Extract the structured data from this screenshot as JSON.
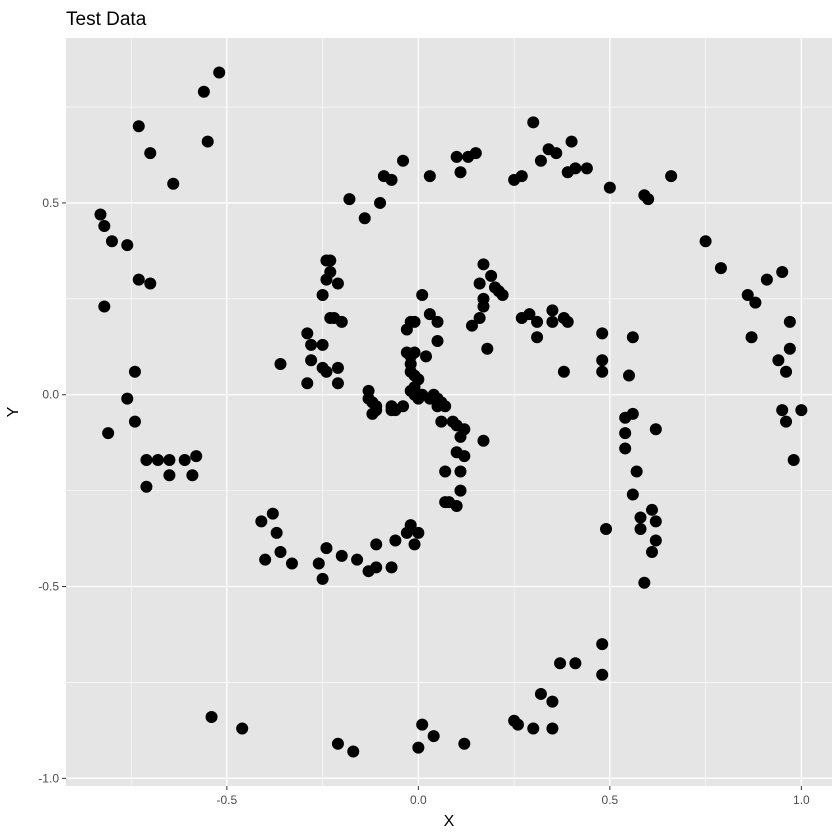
{
  "chart_data": {
    "type": "scatter",
    "title": "Test Data",
    "xlabel": "X",
    "ylabel": "Y",
    "xlim": [
      -0.92,
      1.08
    ],
    "ylim": [
      -1.02,
      0.93
    ],
    "x_ticks": [
      -0.5,
      0.0,
      0.5,
      1.0
    ],
    "x_tick_labels": [
      "-0.5",
      "0.0",
      "0.5",
      "1.0"
    ],
    "y_ticks": [
      -1.0,
      -0.5,
      0.0,
      0.5
    ],
    "y_tick_labels": [
      "-1.0",
      "-0.5",
      "0.0",
      "0.5"
    ],
    "grid": true,
    "legend": "none",
    "colors": {
      "panel": "#e5e5e5",
      "grid": "#ffffff",
      "point": "#000000",
      "background": "#ffffff"
    },
    "points": [
      [
        -0.52,
        0.84
      ],
      [
        -0.56,
        0.79
      ],
      [
        -0.55,
        0.66
      ],
      [
        -0.73,
        0.7
      ],
      [
        -0.7,
        0.63
      ],
      [
        -0.64,
        0.55
      ],
      [
        -0.83,
        0.47
      ],
      [
        -0.82,
        0.44
      ],
      [
        -0.8,
        0.4
      ],
      [
        -0.76,
        0.39
      ],
      [
        -0.73,
        0.3
      ],
      [
        -0.7,
        0.29
      ],
      [
        -0.82,
        0.23
      ],
      [
        -0.74,
        0.06
      ],
      [
        -0.76,
        -0.01
      ],
      [
        -0.74,
        -0.07
      ],
      [
        -0.81,
        -0.1
      ],
      [
        -0.71,
        -0.17
      ],
      [
        -0.68,
        -0.17
      ],
      [
        -0.65,
        -0.17
      ],
      [
        -0.61,
        -0.17
      ],
      [
        -0.58,
        -0.16
      ],
      [
        -0.71,
        -0.24
      ],
      [
        -0.65,
        -0.21
      ],
      [
        -0.59,
        -0.21
      ],
      [
        -0.54,
        -0.84
      ],
      [
        -0.46,
        -0.87
      ],
      [
        -0.41,
        -0.33
      ],
      [
        -0.38,
        -0.31
      ],
      [
        -0.37,
        -0.36
      ],
      [
        -0.36,
        -0.41
      ],
      [
        -0.4,
        -0.43
      ],
      [
        -0.33,
        -0.44
      ],
      [
        -0.26,
        -0.44
      ],
      [
        -0.25,
        -0.48
      ],
      [
        -0.24,
        -0.4
      ],
      [
        -0.2,
        -0.42
      ],
      [
        -0.16,
        -0.43
      ],
      [
        -0.13,
        -0.46
      ],
      [
        -0.11,
        -0.45
      ],
      [
        -0.07,
        -0.45
      ],
      [
        -0.11,
        -0.39
      ],
      [
        -0.06,
        -0.38
      ],
      [
        -0.03,
        -0.36
      ],
      [
        -0.02,
        -0.34
      ],
      [
        0.0,
        -0.36
      ],
      [
        -0.01,
        -0.39
      ],
      [
        -0.21,
        -0.91
      ],
      [
        -0.17,
        -0.93
      ],
      [
        0.01,
        -0.86
      ],
      [
        0.0,
        -0.92
      ],
      [
        0.04,
        -0.89
      ],
      [
        0.12,
        -0.91
      ],
      [
        0.25,
        -0.85
      ],
      [
        0.26,
        -0.86
      ],
      [
        0.3,
        -0.87
      ],
      [
        0.32,
        -0.78
      ],
      [
        0.35,
        -0.8
      ],
      [
        0.35,
        -0.87
      ],
      [
        0.37,
        -0.7
      ],
      [
        0.41,
        -0.7
      ],
      [
        0.48,
        -0.65
      ],
      [
        0.48,
        -0.73
      ],
      [
        -0.18,
        0.51
      ],
      [
        -0.14,
        0.46
      ],
      [
        -0.1,
        0.5
      ],
      [
        -0.09,
        0.57
      ],
      [
        -0.07,
        0.56
      ],
      [
        -0.04,
        0.61
      ],
      [
        0.03,
        0.57
      ],
      [
        0.1,
        0.62
      ],
      [
        0.11,
        0.58
      ],
      [
        0.13,
        0.62
      ],
      [
        0.15,
        0.63
      ],
      [
        0.25,
        0.56
      ],
      [
        0.27,
        0.57
      ],
      [
        0.3,
        0.71
      ],
      [
        0.32,
        0.61
      ],
      [
        0.34,
        0.64
      ],
      [
        0.36,
        0.63
      ],
      [
        0.39,
        0.58
      ],
      [
        0.4,
        0.66
      ],
      [
        0.41,
        0.59
      ],
      [
        0.44,
        0.59
      ],
      [
        0.5,
        0.54
      ],
      [
        0.6,
        0.51
      ],
      [
        0.59,
        0.52
      ],
      [
        0.66,
        0.57
      ],
      [
        0.75,
        0.4
      ],
      [
        0.79,
        0.33
      ],
      [
        0.86,
        0.26
      ],
      [
        0.88,
        0.24
      ],
      [
        0.91,
        0.3
      ],
      [
        0.95,
        0.32
      ],
      [
        0.97,
        0.19
      ],
      [
        0.87,
        0.15
      ],
      [
        0.97,
        0.12
      ],
      [
        0.94,
        0.09
      ],
      [
        0.96,
        0.06
      ],
      [
        0.95,
        -0.04
      ],
      [
        0.96,
        -0.07
      ],
      [
        1.0,
        -0.04
      ],
      [
        0.98,
        -0.17
      ],
      [
        -0.24,
        0.35
      ],
      [
        -0.23,
        0.35
      ],
      [
        -0.23,
        0.32
      ],
      [
        -0.24,
        0.3
      ],
      [
        -0.21,
        0.29
      ],
      [
        -0.25,
        0.26
      ],
      [
        -0.23,
        0.2
      ],
      [
        -0.22,
        0.2
      ],
      [
        -0.2,
        0.19
      ],
      [
        -0.29,
        0.16
      ],
      [
        -0.28,
        0.13
      ],
      [
        -0.25,
        0.13
      ],
      [
        -0.36,
        0.08
      ],
      [
        -0.28,
        0.09
      ],
      [
        -0.24,
        0.06
      ],
      [
        -0.25,
        0.07
      ],
      [
        -0.21,
        0.07
      ],
      [
        -0.29,
        0.03
      ],
      [
        -0.21,
        0.03
      ],
      [
        -0.13,
        0.01
      ],
      [
        -0.13,
        -0.01
      ],
      [
        -0.12,
        -0.02
      ],
      [
        -0.11,
        -0.03
      ],
      [
        -0.12,
        -0.05
      ],
      [
        -0.11,
        -0.04
      ],
      [
        -0.07,
        -0.03
      ],
      [
        -0.07,
        -0.04
      ],
      [
        -0.06,
        -0.04
      ],
      [
        -0.04,
        -0.03
      ],
      [
        -0.03,
        0.17
      ],
      [
        -0.02,
        0.19
      ],
      [
        -0.01,
        0.19
      ],
      [
        0.01,
        0.26
      ],
      [
        0.03,
        0.21
      ],
      [
        0.05,
        0.19
      ],
      [
        -0.03,
        0.11
      ],
      [
        -0.02,
        0.1
      ],
      [
        -0.01,
        0.11
      ],
      [
        0.02,
        0.1
      ],
      [
        0.05,
        0.14
      ],
      [
        -0.02,
        0.08
      ],
      [
        -0.02,
        0.06
      ],
      [
        -0.01,
        0.05
      ],
      [
        0.0,
        0.04
      ],
      [
        -0.01,
        0.02
      ],
      [
        -0.02,
        0.01
      ],
      [
        -0.01,
        0.0
      ],
      [
        0.0,
        -0.01
      ],
      [
        0.01,
        0.0
      ],
      [
        0.04,
        0.0
      ],
      [
        0.03,
        -0.01
      ],
      [
        0.05,
        -0.01
      ],
      [
        0.06,
        -0.02
      ],
      [
        0.05,
        -0.03
      ],
      [
        0.07,
        -0.03
      ],
      [
        0.06,
        -0.07
      ],
      [
        0.09,
        -0.07
      ],
      [
        0.1,
        -0.08
      ],
      [
        0.11,
        -0.11
      ],
      [
        0.12,
        -0.09
      ],
      [
        0.1,
        -0.15
      ],
      [
        0.12,
        -0.16
      ],
      [
        0.17,
        -0.12
      ],
      [
        0.07,
        -0.2
      ],
      [
        0.11,
        -0.2
      ],
      [
        0.11,
        -0.25
      ],
      [
        0.07,
        -0.28
      ],
      [
        0.08,
        -0.28
      ],
      [
        0.1,
        -0.29
      ],
      [
        0.14,
        0.18
      ],
      [
        0.16,
        0.2
      ],
      [
        0.17,
        0.23
      ],
      [
        0.17,
        0.25
      ],
      [
        0.16,
        0.29
      ],
      [
        0.17,
        0.34
      ],
      [
        0.19,
        0.31
      ],
      [
        0.2,
        0.28
      ],
      [
        0.21,
        0.27
      ],
      [
        0.22,
        0.26
      ],
      [
        0.18,
        0.12
      ],
      [
        0.27,
        0.2
      ],
      [
        0.29,
        0.21
      ],
      [
        0.31,
        0.19
      ],
      [
        0.31,
        0.15
      ],
      [
        0.35,
        0.22
      ],
      [
        0.35,
        0.19
      ],
      [
        0.38,
        0.2
      ],
      [
        0.39,
        0.19
      ],
      [
        0.38,
        0.06
      ],
      [
        0.48,
        0.16
      ],
      [
        0.48,
        0.09
      ],
      [
        0.48,
        0.06
      ],
      [
        0.56,
        0.15
      ],
      [
        0.55,
        0.05
      ],
      [
        0.54,
        -0.06
      ],
      [
        0.56,
        -0.05
      ],
      [
        0.54,
        -0.1
      ],
      [
        0.54,
        -0.14
      ],
      [
        0.57,
        -0.2
      ],
      [
        0.62,
        -0.09
      ],
      [
        0.56,
        -0.26
      ],
      [
        0.58,
        -0.32
      ],
      [
        0.58,
        -0.35
      ],
      [
        0.61,
        -0.3
      ],
      [
        0.62,
        -0.33
      ],
      [
        0.62,
        -0.38
      ],
      [
        0.61,
        -0.41
      ],
      [
        0.49,
        -0.35
      ],
      [
        0.59,
        -0.49
      ]
    ]
  }
}
